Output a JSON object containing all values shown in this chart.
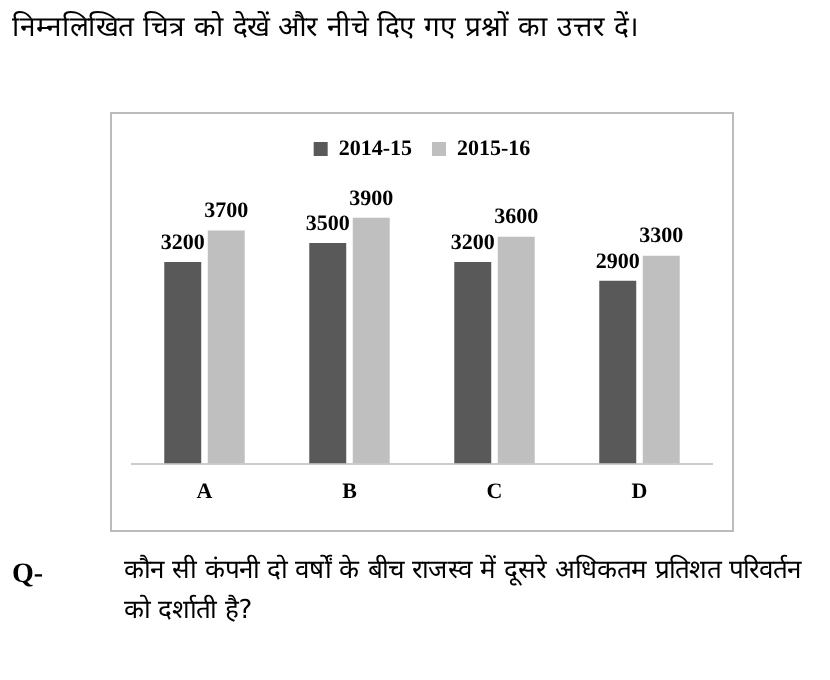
{
  "chart_data": {
    "type": "bar",
    "title": "निम्नलिखित चित्र को देखें और नीचे दिए गए प्रश्नों का उत्तर दें।",
    "categories": [
      "A",
      "B",
      "C",
      "D"
    ],
    "series": [
      {
        "name": "2014-15",
        "color": "#595959",
        "values": [
          3200,
          3500,
          3200,
          2900
        ]
      },
      {
        "name": "2015-16",
        "color": "#bfbfbf",
        "values": [
          3700,
          3900,
          3600,
          3300
        ]
      }
    ],
    "data_labels": true,
    "legend": "top",
    "grid": false,
    "tick_labels": "x",
    "annotations": [
      "Q-",
      "कौन सी कंपनी दो वर्षों के बीच राजस्व में दूसरे अधिकतम प्रतिशत परिवर्तन को दर्शाती है?"
    ]
  }
}
